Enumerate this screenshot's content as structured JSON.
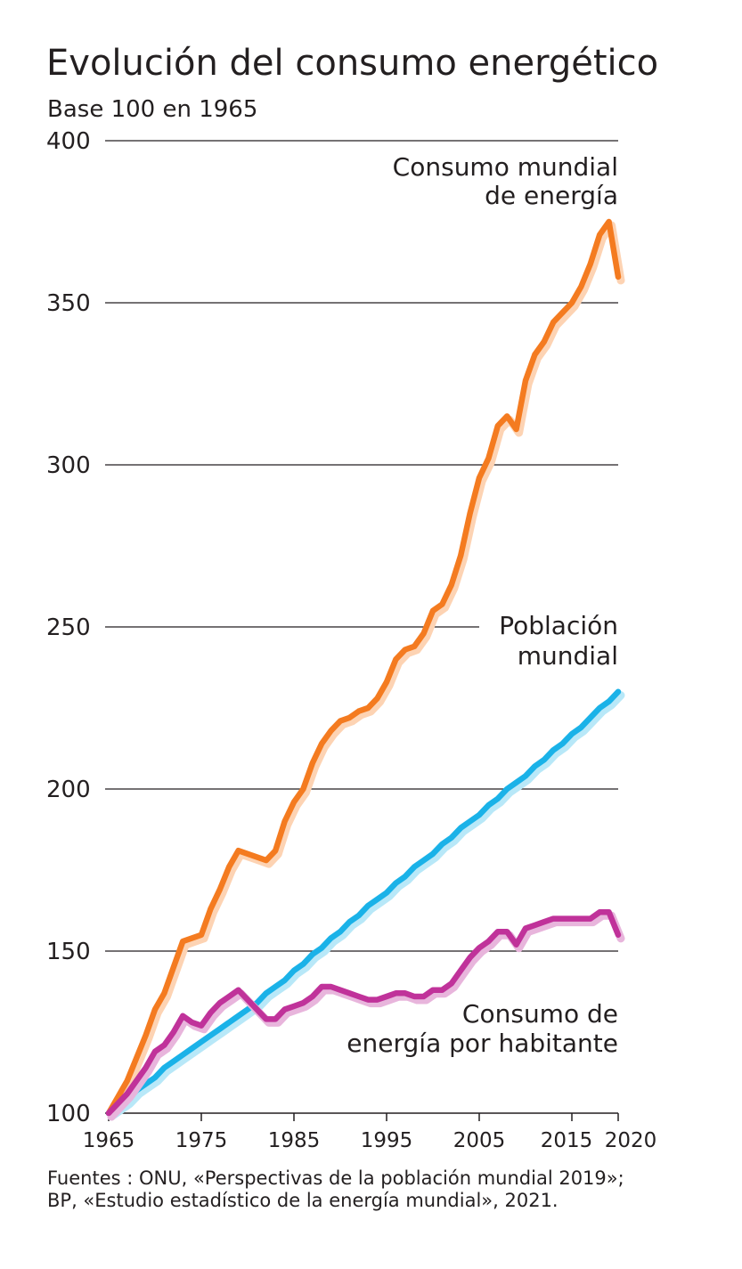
{
  "chart_data": {
    "type": "line",
    "title": "Evolución del consumo energético",
    "subtitle": "Base 100 en 1965",
    "xlabel": "",
    "ylabel": "",
    "ylim": [
      100,
      400
    ],
    "xlim": [
      1965,
      2020
    ],
    "y_ticks": [
      "100",
      "150",
      "200",
      "250",
      "300",
      "350",
      "400"
    ],
    "x_ticks": [
      "1965",
      "1975",
      "1985",
      "1995",
      "2005",
      "2015",
      "2020"
    ],
    "grid": "horizontal",
    "x": [
      1965,
      1966,
      1967,
      1968,
      1969,
      1970,
      1971,
      1972,
      1973,
      1974,
      1975,
      1976,
      1977,
      1978,
      1979,
      1980,
      1981,
      1982,
      1983,
      1984,
      1985,
      1986,
      1987,
      1988,
      1989,
      1990,
      1991,
      1992,
      1993,
      1994,
      1995,
      1996,
      1997,
      1998,
      1999,
      2000,
      2001,
      2002,
      2003,
      2004,
      2005,
      2006,
      2007,
      2008,
      2009,
      2010,
      2011,
      2012,
      2013,
      2014,
      2015,
      2016,
      2017,
      2018,
      2019,
      2020
    ],
    "series": [
      {
        "name_lines": [
          "Consumo mundial",
          "de energía"
        ],
        "color": "#f47b20",
        "values": [
          100,
          105,
          110,
          117,
          124,
          132,
          137,
          145,
          153,
          154,
          155,
          163,
          169,
          176,
          181,
          180,
          179,
          178,
          181,
          190,
          196,
          200,
          208,
          214,
          218,
          221,
          222,
          224,
          225,
          228,
          233,
          240,
          243,
          244,
          248,
          255,
          257,
          263,
          272,
          285,
          296,
          302,
          312,
          315,
          311,
          326,
          334,
          338,
          344,
          347,
          350,
          355,
          362,
          371,
          375,
          358
        ]
      },
      {
        "name_lines": [
          "Población",
          "mundial"
        ],
        "color": "#1ab2e8",
        "values": [
          100,
          102,
          104,
          107,
          109,
          111,
          114,
          116,
          118,
          120,
          122,
          124,
          126,
          128,
          130,
          132,
          134,
          137,
          139,
          141,
          144,
          146,
          149,
          151,
          154,
          156,
          159,
          161,
          164,
          166,
          168,
          171,
          173,
          176,
          178,
          180,
          183,
          185,
          188,
          190,
          192,
          195,
          197,
          200,
          202,
          204,
          207,
          209,
          212,
          214,
          217,
          219,
          222,
          225,
          227,
          230
        ]
      },
      {
        "name_lines": [
          "Consumo de",
          "energía por habitante"
        ],
        "color": "#c0329a",
        "values": [
          100,
          103,
          106,
          110,
          114,
          119,
          121,
          125,
          130,
          128,
          127,
          131,
          134,
          136,
          138,
          135,
          132,
          129,
          129,
          132,
          133,
          134,
          136,
          139,
          139,
          138,
          137,
          136,
          135,
          135,
          136,
          137,
          137,
          136,
          136,
          138,
          138,
          140,
          144,
          148,
          151,
          153,
          156,
          156,
          152,
          157,
          158,
          159,
          160,
          160,
          160,
          160,
          160,
          162,
          162,
          155
        ]
      }
    ]
  },
  "footer": {
    "source_line1": "Fuentes : ONU, «Perspectivas de la población mundial 2019»;",
    "source_line2": "BP, «Estudio estadístico de la energía mundial», 2021."
  }
}
